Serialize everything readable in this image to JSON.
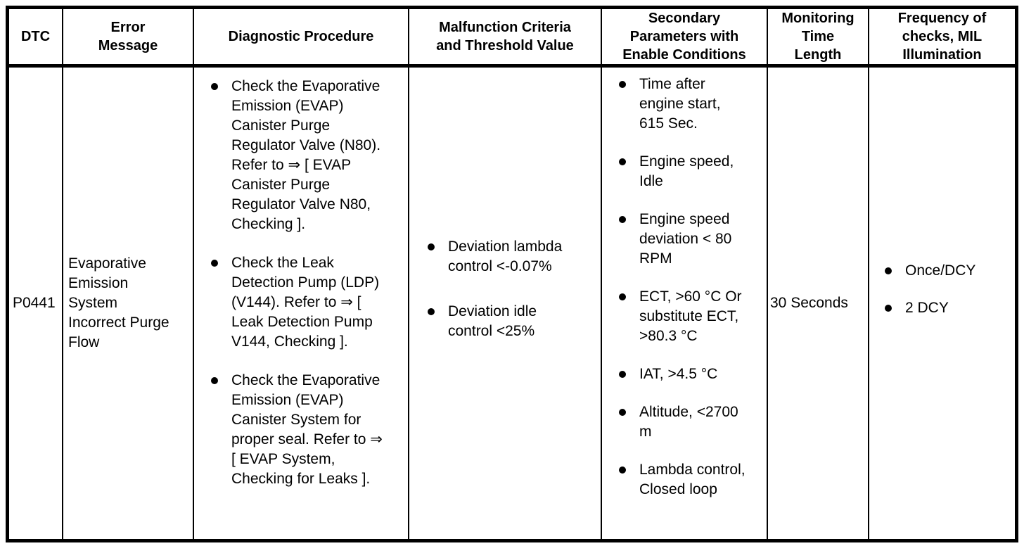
{
  "table": {
    "headers": [
      "DTC",
      "Error\nMessage",
      "Diagnostic Procedure",
      "Malfunction Criteria\nand Threshold Value",
      "Secondary\nParameters with\nEnable Conditions",
      "Monitoring\nTime\nLength",
      "Frequency of\nchecks, MIL\nIllumination"
    ],
    "row": {
      "dtc": "P0441",
      "error_message": "Evaporative\nEmission\nSystem\nIncorrect Purge\nFlow",
      "diagnostic_procedure": [
        "Check the Evaporative\nEmission (EVAP)\nCanister Purge\nRegulator Valve (N80).\nRefer to ⇒ [ EVAP\nCanister Purge\nRegulator Valve N80,\nChecking ].",
        "Check the Leak\nDetection Pump (LDP)\n(V144). Refer to ⇒ [\nLeak Detection Pump\nV144, Checking ].",
        "Check the Evaporative\nEmission (EVAP)\nCanister System for\nproper seal. Refer to ⇒\n[ EVAP System,\nChecking for Leaks ]."
      ],
      "malfunction_criteria": [
        "Deviation lambda\ncontrol <-0.07%",
        "Deviation idle\ncontrol <25%"
      ],
      "secondary_parameters": [
        "Time after\nengine start,\n615 Sec.",
        "Engine speed,\nIdle",
        "Engine speed\ndeviation < 80\nRPM",
        "ECT, >60 °C Or\nsubstitute ECT,\n>80.3 °C",
        "IAT, >4.5 °C",
        "Altitude, <2700\nm",
        "Lambda control,\nClosed loop"
      ],
      "monitoring_time_length": "30 Seconds",
      "frequency_checks": [
        "Once/DCY",
        "2 DCY"
      ]
    },
    "colors": {
      "border": "#000000",
      "text": "#000000",
      "background": "#ffffff"
    }
  }
}
